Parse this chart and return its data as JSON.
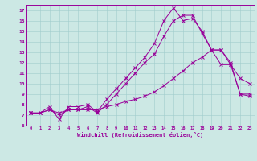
{
  "xlabel": "Windchill (Refroidissement éolien,°C)",
  "background_color": "#cce8e4",
  "line_color": "#990099",
  "xlim": [
    -0.5,
    23.5
  ],
  "ylim": [
    6,
    17.5
  ],
  "xticks": [
    0,
    1,
    2,
    3,
    4,
    5,
    6,
    7,
    8,
    9,
    10,
    11,
    12,
    13,
    14,
    15,
    16,
    17,
    18,
    19,
    20,
    21,
    22,
    23
  ],
  "yticks": [
    6,
    7,
    8,
    9,
    10,
    11,
    12,
    13,
    14,
    15,
    16,
    17
  ],
  "series1_x": [
    0,
    1,
    2,
    3,
    4,
    5,
    6,
    7,
    8,
    9,
    10,
    11,
    12,
    13,
    14,
    15,
    16,
    17,
    18,
    19,
    20,
    21,
    22,
    23
  ],
  "series1_y": [
    7.2,
    7.2,
    7.8,
    6.6,
    7.8,
    7.8,
    8.0,
    7.3,
    8.5,
    9.5,
    10.5,
    11.5,
    12.5,
    13.8,
    16.0,
    17.2,
    16.0,
    16.2,
    15.0,
    13.2,
    11.8,
    11.8,
    10.5,
    10.0
  ],
  "series2_x": [
    0,
    1,
    2,
    3,
    4,
    5,
    6,
    7,
    8,
    9,
    10,
    11,
    12,
    13,
    14,
    15,
    16,
    17,
    18,
    19,
    20,
    21,
    22,
    23
  ],
  "series2_y": [
    7.2,
    7.2,
    7.5,
    7.0,
    7.5,
    7.5,
    7.8,
    7.2,
    8.0,
    9.0,
    10.0,
    11.0,
    12.0,
    12.8,
    14.5,
    16.0,
    16.5,
    16.5,
    14.8,
    13.2,
    13.2,
    11.8,
    9.0,
    9.0
  ],
  "series3_x": [
    0,
    1,
    2,
    3,
    4,
    5,
    6,
    7,
    8,
    9,
    10,
    11,
    12,
    13,
    14,
    15,
    16,
    17,
    18,
    19,
    20,
    21,
    22,
    23
  ],
  "series3_y": [
    7.2,
    7.2,
    7.5,
    7.2,
    7.5,
    7.5,
    7.5,
    7.5,
    7.8,
    8.0,
    8.3,
    8.5,
    8.8,
    9.2,
    9.8,
    10.5,
    11.2,
    12.0,
    12.5,
    13.2,
    13.2,
    12.0,
    9.0,
    8.8
  ]
}
